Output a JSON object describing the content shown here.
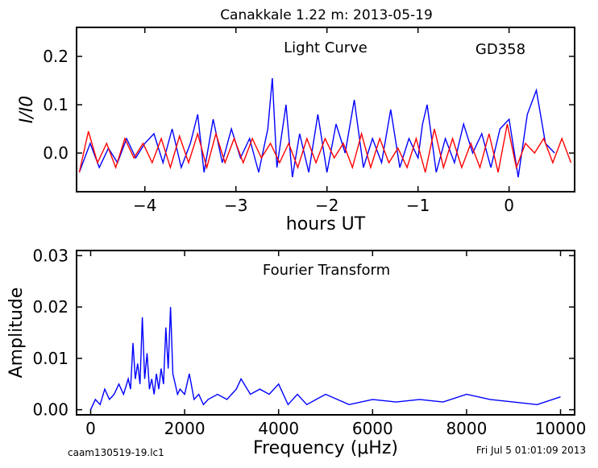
{
  "header": {
    "title": "Canakkale 1.22 m:  2013-05-19"
  },
  "footer": {
    "filename": "caam130519-19.lc1",
    "timestamp": "Fri Jul  5 01:01:09 2013"
  },
  "colors": {
    "observed": "#0000ff",
    "model": "#ff0000",
    "fourier": "#0000ff"
  },
  "chart_data": [
    {
      "type": "line",
      "annotation": "Light Curve",
      "star_label": "GD358",
      "xlabel": "hours UT",
      "ylabel": "I/I0",
      "xlim": [
        -4.75,
        0.72
      ],
      "ylim": [
        -0.08,
        0.26
      ],
      "xticks": [
        -4,
        -3,
        -2,
        -1,
        0
      ],
      "xtick_labels": [
        "−4",
        "−3",
        "−2",
        "−1",
        "0"
      ],
      "yticks": [
        0.0,
        0.1,
        0.2
      ],
      "ytick_labels": [
        "0.0",
        "0.1",
        "0.2"
      ],
      "grid": false,
      "series": [
        {
          "x": [
            -4.72,
            -4.6,
            -4.5,
            -4.4,
            -4.3,
            -4.2,
            -4.1,
            -4.0,
            -3.9,
            -3.8,
            -3.7,
            -3.6,
            -3.5,
            -3.42,
            -3.35,
            -3.25,
            -3.15,
            -3.05,
            -2.95,
            -2.85,
            -2.75,
            -2.65,
            -2.6,
            -2.55,
            -2.45,
            -2.38,
            -2.3,
            -2.2,
            -2.1,
            -2.0,
            -1.9,
            -1.8,
            -1.7,
            -1.6,
            -1.5,
            -1.4,
            -1.3,
            -1.2,
            -1.1,
            -1.0,
            -0.95,
            -0.9,
            -0.8,
            -0.7,
            -0.6,
            -0.5,
            -0.4,
            -0.3,
            -0.2,
            -0.1,
            0.0,
            0.1,
            0.2,
            0.3,
            0.4,
            0.5
          ],
          "y": [
            -0.04,
            0.02,
            -0.03,
            0.01,
            -0.02,
            0.03,
            -0.01,
            0.02,
            0.04,
            -0.02,
            0.05,
            -0.03,
            0.02,
            0.08,
            -0.04,
            0.07,
            -0.02,
            0.05,
            -0.01,
            0.03,
            -0.04,
            0.05,
            0.155,
            -0.03,
            0.1,
            -0.05,
            0.04,
            -0.04,
            0.08,
            -0.04,
            0.06,
            0.0,
            0.11,
            -0.03,
            0.03,
            -0.02,
            0.09,
            -0.03,
            0.03,
            -0.01,
            0.06,
            0.1,
            -0.04,
            0.03,
            -0.02,
            0.06,
            0.0,
            0.04,
            -0.03,
            0.05,
            0.07,
            -0.05,
            0.08,
            0.13,
            0.02,
            0.0
          ]
        },
        {
          "x": [
            -4.72,
            -4.62,
            -4.52,
            -4.42,
            -4.32,
            -4.22,
            -4.12,
            -4.02,
            -3.92,
            -3.82,
            -3.72,
            -3.62,
            -3.52,
            -3.42,
            -3.32,
            -3.22,
            -3.12,
            -3.02,
            -2.92,
            -2.82,
            -2.72,
            -2.62,
            -2.52,
            -2.42,
            -2.32,
            -2.22,
            -2.12,
            -2.02,
            -1.92,
            -1.82,
            -1.72,
            -1.62,
            -1.52,
            -1.42,
            -1.32,
            -1.22,
            -1.12,
            -1.02,
            -0.92,
            -0.82,
            -0.72,
            -0.62,
            -0.52,
            -0.42,
            -0.32,
            -0.22,
            -0.12,
            -0.02,
            0.08,
            0.18,
            0.28,
            0.38,
            0.48,
            0.58,
            0.68
          ],
          "y": [
            -0.04,
            0.045,
            -0.02,
            0.02,
            -0.03,
            0.03,
            -0.01,
            0.02,
            -0.02,
            0.03,
            -0.03,
            0.035,
            -0.02,
            0.04,
            -0.03,
            0.04,
            -0.02,
            0.03,
            -0.02,
            0.03,
            -0.01,
            0.02,
            -0.02,
            0.02,
            -0.03,
            0.03,
            -0.02,
            0.03,
            -0.01,
            0.02,
            -0.03,
            0.04,
            -0.03,
            0.03,
            -0.02,
            0.01,
            -0.03,
            0.03,
            -0.04,
            0.05,
            -0.03,
            0.03,
            -0.03,
            0.02,
            -0.03,
            0.04,
            -0.04,
            0.06,
            -0.03,
            0.02,
            0.0,
            0.03,
            -0.02,
            0.03,
            -0.02
          ]
        }
      ]
    },
    {
      "type": "line",
      "annotation": "Fourier Transform",
      "xlabel": "Frequency (μHz)",
      "ylabel": "Amplitude",
      "xlim": [
        -300,
        10300
      ],
      "ylim": [
        -0.001,
        0.031
      ],
      "xticks": [
        0,
        2000,
        4000,
        6000,
        8000,
        10000
      ],
      "xtick_labels": [
        "0",
        "2000",
        "4000",
        "6000",
        "8000",
        "10000"
      ],
      "yticks": [
        0.0,
        0.01,
        0.02,
        0.03
      ],
      "ytick_labels": [
        "0.00",
        "0.01",
        "0.02",
        "0.03"
      ],
      "grid": false,
      "series": [
        {
          "x": [
            0,
            100,
            200,
            300,
            400,
            500,
            600,
            700,
            800,
            850,
            900,
            950,
            1000,
            1050,
            1100,
            1150,
            1200,
            1250,
            1300,
            1350,
            1400,
            1450,
            1500,
            1550,
            1600,
            1650,
            1700,
            1750,
            1800,
            1850,
            1900,
            2000,
            2100,
            2200,
            2300,
            2400,
            2500,
            2700,
            2900,
            3100,
            3200,
            3400,
            3600,
            3800,
            4000,
            4200,
            4400,
            4600,
            4800,
            5000,
            5500,
            6000,
            6500,
            7000,
            7500,
            8000,
            8500,
            9000,
            9500,
            10000
          ],
          "y": [
            0.0,
            0.002,
            0.001,
            0.004,
            0.002,
            0.003,
            0.005,
            0.003,
            0.006,
            0.004,
            0.013,
            0.006,
            0.009,
            0.005,
            0.018,
            0.006,
            0.011,
            0.004,
            0.006,
            0.003,
            0.007,
            0.004,
            0.008,
            0.005,
            0.016,
            0.008,
            0.02,
            0.007,
            0.005,
            0.003,
            0.004,
            0.003,
            0.007,
            0.002,
            0.003,
            0.001,
            0.002,
            0.003,
            0.002,
            0.004,
            0.006,
            0.003,
            0.004,
            0.003,
            0.005,
            0.001,
            0.003,
            0.001,
            0.002,
            0.003,
            0.001,
            0.002,
            0.0015,
            0.002,
            0.0015,
            0.003,
            0.002,
            0.0015,
            0.001,
            0.0025
          ]
        }
      ]
    }
  ]
}
